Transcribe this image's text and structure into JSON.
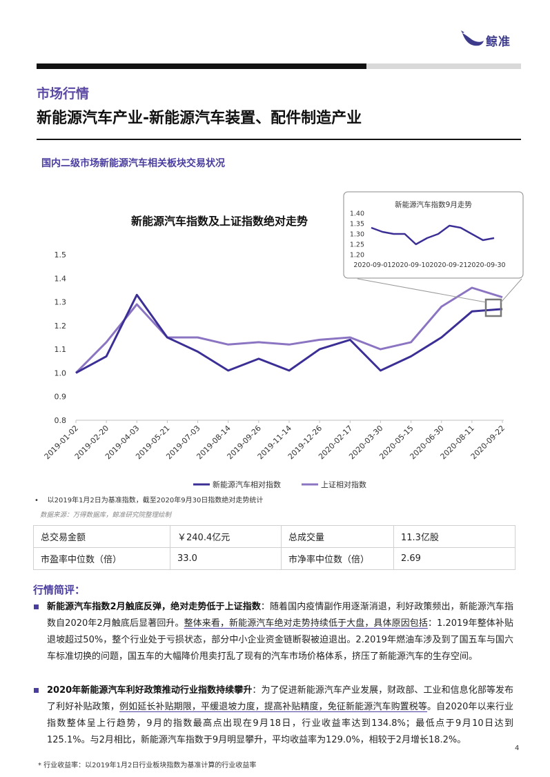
{
  "header": {
    "brand": "鲸准",
    "section_label": "市场行情",
    "title": "新能源汽车产业-新能源汽车装置、配件制造产业"
  },
  "sub_heading": "国内二级市场新能源汽车相关板块交易状况",
  "colors": {
    "accent": "#4a3da0",
    "series_nev": "#3b2f96",
    "series_sse": "#8b74c2"
  },
  "chart_data": [
    {
      "type": "line",
      "title": "新能源汽车指数及上证指数绝对走势",
      "ylim": [
        0.8,
        1.5
      ],
      "yticks": [
        "0.8",
        "0.9",
        "1.0",
        "1.1",
        "1.2",
        "1.3",
        "1.4",
        "1.5"
      ],
      "x": [
        "2019-01-02",
        "2019-02-20",
        "2019-04-03",
        "2019-05-21",
        "2019-07-03",
        "2019-08-14",
        "2019-09-26",
        "2019-11-14",
        "2019-12-26",
        "2020-02-17",
        "2020-03-30",
        "2020-05-15",
        "2020-06-30",
        "2020-08-11",
        "2020-09-22"
      ],
      "xticks": [
        "2019-01-02",
        "2019-02-20",
        "2019-04-03",
        "2019-05-21",
        "2019-07-03",
        "2019-08-14",
        "2019-09-26",
        "2019-11-14",
        "2019-12-26",
        "2020-02-17",
        "2020-03-30",
        "2020-05-15",
        "2020-06-30",
        "2020-08-11",
        "2020-09-22"
      ],
      "series": [
        {
          "name": "新能源汽车相对指数",
          "values": [
            1.0,
            1.07,
            1.33,
            1.15,
            1.09,
            1.01,
            1.06,
            1.01,
            1.1,
            1.14,
            1.01,
            1.07,
            1.15,
            1.26,
            1.27
          ]
        },
        {
          "name": "上证相对指数",
          "values": [
            1.0,
            1.13,
            1.29,
            1.15,
            1.15,
            1.12,
            1.13,
            1.12,
            1.14,
            1.15,
            1.1,
            1.13,
            1.28,
            1.36,
            1.32
          ]
        }
      ],
      "legend": "bottom"
    },
    {
      "type": "line",
      "title": "新能源汽车指数9月走势",
      "ylim": [
        1.2,
        1.4
      ],
      "yticks": [
        "1.20",
        "1.25",
        "1.30",
        "1.35",
        "1.40"
      ],
      "xticks": [
        "2020-09-01",
        "2020-09-10",
        "2020-09-21",
        "2020-09-30"
      ],
      "series": [
        {
          "name": "",
          "values": [
            1.33,
            1.31,
            1.3,
            1.3,
            1.25,
            1.28,
            1.3,
            1.34,
            1.33,
            1.3,
            1.27,
            1.28
          ]
        }
      ]
    }
  ],
  "note": "以2019年1月2日为基准指数，截至2020年9月30日指数绝对走势统计",
  "source": "数据来源：万得数据库，鲸准研究院整理绘制",
  "stats": [
    [
      "总交易金额",
      "￥240.4亿元",
      "总成交量",
      "11.3亿股"
    ],
    [
      "市盈率中位数（倍）",
      "33.0",
      "市净率中位数（倍）",
      "2.69"
    ]
  ],
  "review": {
    "heading": "行情简评：",
    "p1": {
      "lead": "新能源汽车指数2月触底反弹，绝对走势低于上证指数",
      "t1": "：随着国内疫情副作用逐渐消退，利好政策频出，新能源汽车指数自2020年2月触底后显著回升。",
      "u1": "整体来看，新能源汽车绝对走势持续低于大盘，具体原因包括",
      "t2": "：1.2019年整体补贴退坡超过50%，整个行业处于亏损状态，部分中小企业资金链断裂被迫退出。2.2019年燃油车涉及到了国五车与国六车标准切换的问题，国五车的大幅降价甩卖打乱了现有的汽车市场价格体系，挤压了新能源汽车的生存空间。"
    },
    "p2": {
      "lead": "2020年新能源汽车利好政策推动行业指数持续攀升",
      "t1": "：为了促进新能源汽车产业发展，财政部、工业和信息化部等发布了利好补贴政策，",
      "u1": "例如延长补贴期限，平缓退坡力度，提高补贴精度，免征新能源汽车购置税等",
      "t2": "。自2020年以来行业指数整体呈上行趋势，9月的指数最高点出现在9月18日，行业收益率达到134.8%；最低点于9月10日达到125.1%。与2月相比，新能源汽车指数于9月明显攀升，平均收益率为129.0%，相较于2月增长18.2%。"
    }
  },
  "page_number": "4",
  "footnote": "* 行业收益率：以2019年1月2日行业板块指数为基准计算的行业收益率"
}
